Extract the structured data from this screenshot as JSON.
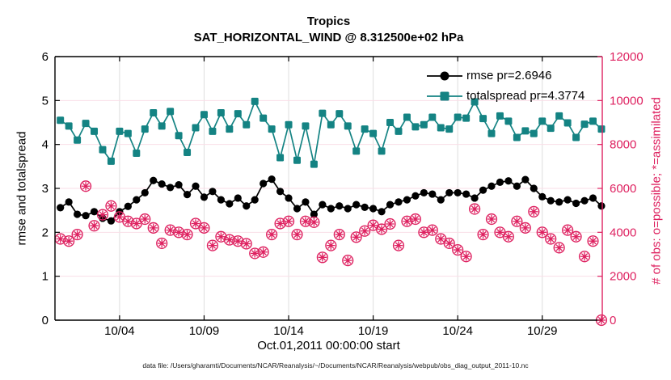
{
  "title": {
    "line1": "Tropics",
    "line2": "SAT_HORIZONTAL_WIND @ 8.312500e+02 hPa"
  },
  "legend": {
    "items": [
      {
        "label": "rmse pr=2.6946",
        "marker": "filled-circle",
        "color_key": "black"
      },
      {
        "label": "totalspread pr=4.3774",
        "marker": "filled-square",
        "color_key": "teal"
      }
    ]
  },
  "axes": {
    "y_left": {
      "label": "rmse and totalspread",
      "ticks": [
        "0",
        "1",
        "2",
        "3",
        "4",
        "5",
        "6"
      ]
    },
    "y_right": {
      "label": "# of obs: o=possible; *=assimilated",
      "ticks": [
        "0",
        "2000",
        "4000",
        "6000",
        "8000",
        "10000",
        "12000"
      ]
    },
    "x": {
      "label": "Oct.01,2011 00:00:00 start",
      "tick_labels": [
        "10/04",
        "10/09",
        "10/14",
        "10/19",
        "10/24",
        "10/29"
      ],
      "tick_days": [
        3,
        8,
        13,
        18,
        23,
        28
      ]
    }
  },
  "footer": {
    "text": "data file: /Users/gharamti/Documents/NCAR/Reanalysis/~/Documents/NCAR/Reanalysis/webpub/obs_diag_output_2011-10.nc"
  },
  "colors": {
    "black": "#000000",
    "teal": "#148383",
    "pink": "#DE2160",
    "grid_h": "#F9DEE7",
    "grid_v": "#DEDEDE",
    "spine": "#000000"
  },
  "chart_data": {
    "type": "line",
    "title": "Tropics — SAT_HORIZONTAL_WIND @ 8.312500e+02 hPa",
    "xlabel": "Oct.01,2011 00:00:00 start",
    "ylabel_left": "rmse and totalspread",
    "ylabel_right": "# of obs: o=possible; *=assimilated",
    "x_start": -0.5,
    "x_step": 0.5,
    "x_unit": "days from Oct 01 2011 00:00",
    "xlim": [
      -0.82,
      31.55
    ],
    "ylim_left": [
      0,
      6
    ],
    "ylim_right": [
      0,
      12000
    ],
    "grid": true,
    "legend_position": "top-right-inside",
    "series": [
      {
        "name": "rmse pr=2.6946",
        "axis": "left",
        "marker": "filled-circle",
        "color_key": "black",
        "values": [
          2.56,
          2.69,
          2.41,
          2.38,
          2.47,
          2.32,
          2.26,
          2.47,
          2.59,
          2.74,
          2.9,
          3.18,
          3.1,
          3.02,
          3.08,
          2.86,
          3.05,
          2.8,
          2.93,
          2.74,
          2.65,
          2.78,
          2.6,
          2.74,
          3.11,
          3.21,
          2.93,
          2.78,
          2.54,
          2.69,
          2.41,
          2.63,
          2.54,
          2.6,
          2.54,
          2.63,
          2.57,
          2.54,
          2.47,
          2.63,
          2.69,
          2.74,
          2.83,
          2.9,
          2.87,
          2.74,
          2.9,
          2.9,
          2.87,
          2.78,
          2.96,
          3.05,
          3.14,
          3.17,
          3.05,
          3.2,
          3.0,
          2.81,
          2.72,
          2.69,
          2.74,
          2.66,
          2.72,
          2.78,
          2.6
        ]
      },
      {
        "name": "totalspread pr=4.3774",
        "axis": "left",
        "marker": "filled-square",
        "color_key": "teal",
        "values": [
          4.55,
          4.42,
          4.1,
          4.48,
          4.3,
          3.88,
          3.62,
          4.3,
          4.25,
          3.8,
          4.35,
          4.72,
          4.42,
          4.75,
          4.2,
          3.82,
          4.38,
          4.68,
          4.3,
          4.72,
          4.35,
          4.7,
          4.45,
          4.98,
          4.6,
          4.35,
          3.7,
          4.45,
          3.64,
          4.42,
          3.55,
          4.71,
          4.45,
          4.7,
          4.42,
          3.85,
          4.35,
          4.25,
          3.85,
          4.5,
          4.3,
          4.62,
          4.4,
          4.45,
          4.62,
          4.38,
          4.35,
          4.62,
          4.6,
          4.97,
          4.59,
          4.25,
          4.65,
          4.53,
          4.16,
          4.31,
          4.25,
          4.53,
          4.37,
          4.65,
          4.49,
          4.16,
          4.46,
          4.53,
          4.35
        ]
      },
      {
        "name": "# of obs (o=possible, *=assimilated)",
        "axis": "right",
        "marker": "circle-and-asterisk",
        "color_key": "pink",
        "line": false,
        "values": [
          3700,
          3600,
          3900,
          6100,
          4300,
          4800,
          5200,
          4700,
          4500,
          4400,
          4600,
          4200,
          3500,
          4100,
          4000,
          3900,
          4400,
          4200,
          3400,
          3800,
          3660,
          3600,
          3480,
          3040,
          3100,
          3900,
          4400,
          4500,
          3900,
          4500,
          4460,
          2860,
          3400,
          3900,
          2720,
          3780,
          4060,
          4320,
          4140,
          4380,
          3400,
          4500,
          4600,
          4000,
          4100,
          3700,
          3500,
          3200,
          2900,
          5060,
          3900,
          4600,
          4000,
          3800,
          4500,
          4200,
          4940,
          4000,
          3700,
          3300,
          4100,
          3800,
          2900,
          3600,
          0
        ]
      }
    ]
  }
}
